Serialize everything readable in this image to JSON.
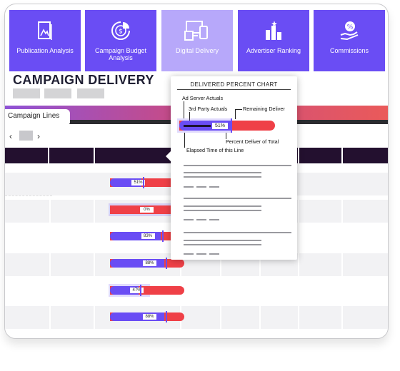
{
  "tiles": [
    {
      "label": "Publication Analysis",
      "icon": "publication-analysis-icon",
      "active": false
    },
    {
      "label": "Campaign Budget Analysis",
      "icon": "campaign-budget-icon",
      "active": false
    },
    {
      "label": "Digital Delivery",
      "icon": "digital-delivery-icon",
      "active": true
    },
    {
      "label": "Advertiser Ranking",
      "icon": "advertiser-ranking-icon",
      "active": false
    },
    {
      "label": "Commissions",
      "icon": "commissions-icon",
      "active": false
    }
  ],
  "page_title": "CAMPAIGN DELIVERY",
  "tab": {
    "label": "Campaign Lines"
  },
  "pager": {
    "prev": "‹",
    "next": "›"
  },
  "rows": [
    {
      "pct_label": "51%",
      "percent": 51
    },
    {
      "pct_label": "0%",
      "percent": 0
    },
    {
      "pct_label": "83%",
      "percent": 83
    },
    {
      "pct_label": "88%",
      "percent": 88
    },
    {
      "pct_label": "47%",
      "percent": 47
    },
    {
      "pct_label": "88%",
      "percent": 88
    }
  ],
  "legend_popup": {
    "title": "DELIVERED PERCENT CHART",
    "sample_pct": "51%",
    "labels": {
      "ad_server": "Ad Server Actuals",
      "third_party": "3rd Party Actuals",
      "remaining": "Remaining Deliver",
      "percent_total": "Percent Deliver of Total",
      "elapsed": "Elapsed Time of this Line"
    }
  },
  "colors": {
    "primary": "#6a4df4",
    "active_tile": "#b7a8fa",
    "remaining": "#ef4047",
    "header_dark": "#23102f"
  }
}
